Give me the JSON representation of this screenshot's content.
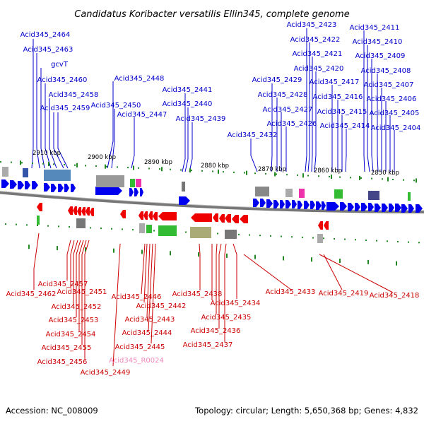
{
  "title": "Candidatus Koribacter versatilis Ellin345, complete genome",
  "footer": {
    "accession": "Accession: NC_008009",
    "summary": "Topology: circular; Length: 5,650,368 bp; Genes: 4,832"
  },
  "kbp_ticks": [
    "2910 kbp",
    "2900 kbp",
    "2890 kbp",
    "2880 kbp",
    "2870 kbp",
    "2860 kbp",
    "2850 kbp"
  ],
  "forward_genes": [
    "Acid345_2464",
    "Acid345_2463",
    "gcvT",
    "Acid345_2460",
    "Acid345_2458",
    "Acid345_2459",
    "Acid345_2448",
    "Acid345_2450",
    "Acid345_2447",
    "Acid345_2441",
    "Acid345_2440",
    "Acid345_2439",
    "Acid345_2432",
    "Acid345_2429",
    "Acid345_2428",
    "Acid345_2427",
    "Acid345_2426",
    "Acid345_2423",
    "Acid345_2422",
    "Acid345_2421",
    "Acid345_2420",
    "Acid345_2417",
    "Acid345_2416",
    "Acid345_2415",
    "Acid345_2414",
    "Acid345_2411",
    "Acid345_2410",
    "Acid345_2409",
    "Acid345_2408",
    "Acid345_2407",
    "Acid345_2406",
    "Acid345_2405",
    "Acid345_2404"
  ],
  "reverse_genes": [
    "Acid345_2462",
    "Acid345_2457",
    "Acid345_2451",
    "Acid345_2452",
    "Acid345_2453",
    "Acid345_2454",
    "Acid345_2455",
    "Acid345_2456",
    "Acid345_2449",
    "Acid345_2446",
    "Acid345_2442",
    "Acid345_2443",
    "Acid345_2444",
    "Acid345_2445",
    "Acid345_2438",
    "Acid345_2434",
    "Acid345_2435",
    "Acid345_2436",
    "Acid345_2437",
    "Acid345_2433",
    "Acid345_2419",
    "Acid345_2418"
  ],
  "rna_genes": [
    "Acid345_R0024"
  ],
  "colors": {
    "forward": "#0000cc",
    "reverse": "#cc0000",
    "rna": "#ee88bb",
    "fwd_gene": "#0000ee",
    "rev_gene": "#ee0000",
    "tick": "#228822",
    "backbone": "#777777"
  }
}
